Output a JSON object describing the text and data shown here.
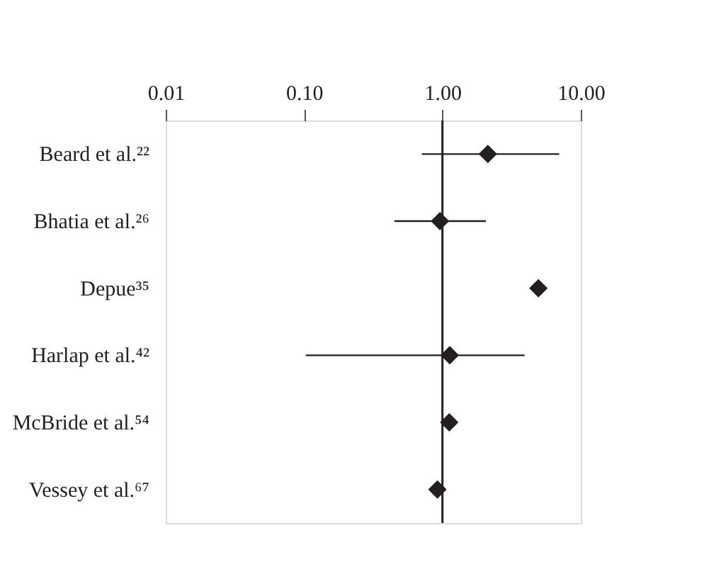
{
  "chart_data": {
    "type": "scatter",
    "categories": [
      "Beard et al.²²",
      "Bhatia et al.²⁶",
      "Depue³⁵",
      "Harlap et al.⁴²",
      "McBride et al.⁵⁴",
      "Vessey et al.⁶⁷"
    ],
    "series": [
      {
        "color": "#231f20",
        "values": [
          2.13,
          0.96,
          4.94,
          1.13,
          1.12,
          0.92
        ],
        "errors": [
          [
            0.71,
            6.98
          ],
          [
            0.45,
            2.06
          ],
          null,
          [
            0.103,
            3.93
          ],
          null,
          null
        ]
      }
    ],
    "orientation": "horizontal",
    "log": "x",
    "marker": "diamond",
    "grid": false,
    "xlim": [
      0.01,
      10
    ],
    "xticks": [
      {
        "value": 0.01,
        "label": "0.01"
      },
      {
        "value": 0.1,
        "label": "0.10"
      },
      {
        "value": 1,
        "label": "1.00"
      },
      {
        "value": 10,
        "label": "10.00"
      }
    ],
    "ref_lines": [
      {
        "axis": "x",
        "value": 1,
        "color": "#231f20"
      }
    ]
  }
}
